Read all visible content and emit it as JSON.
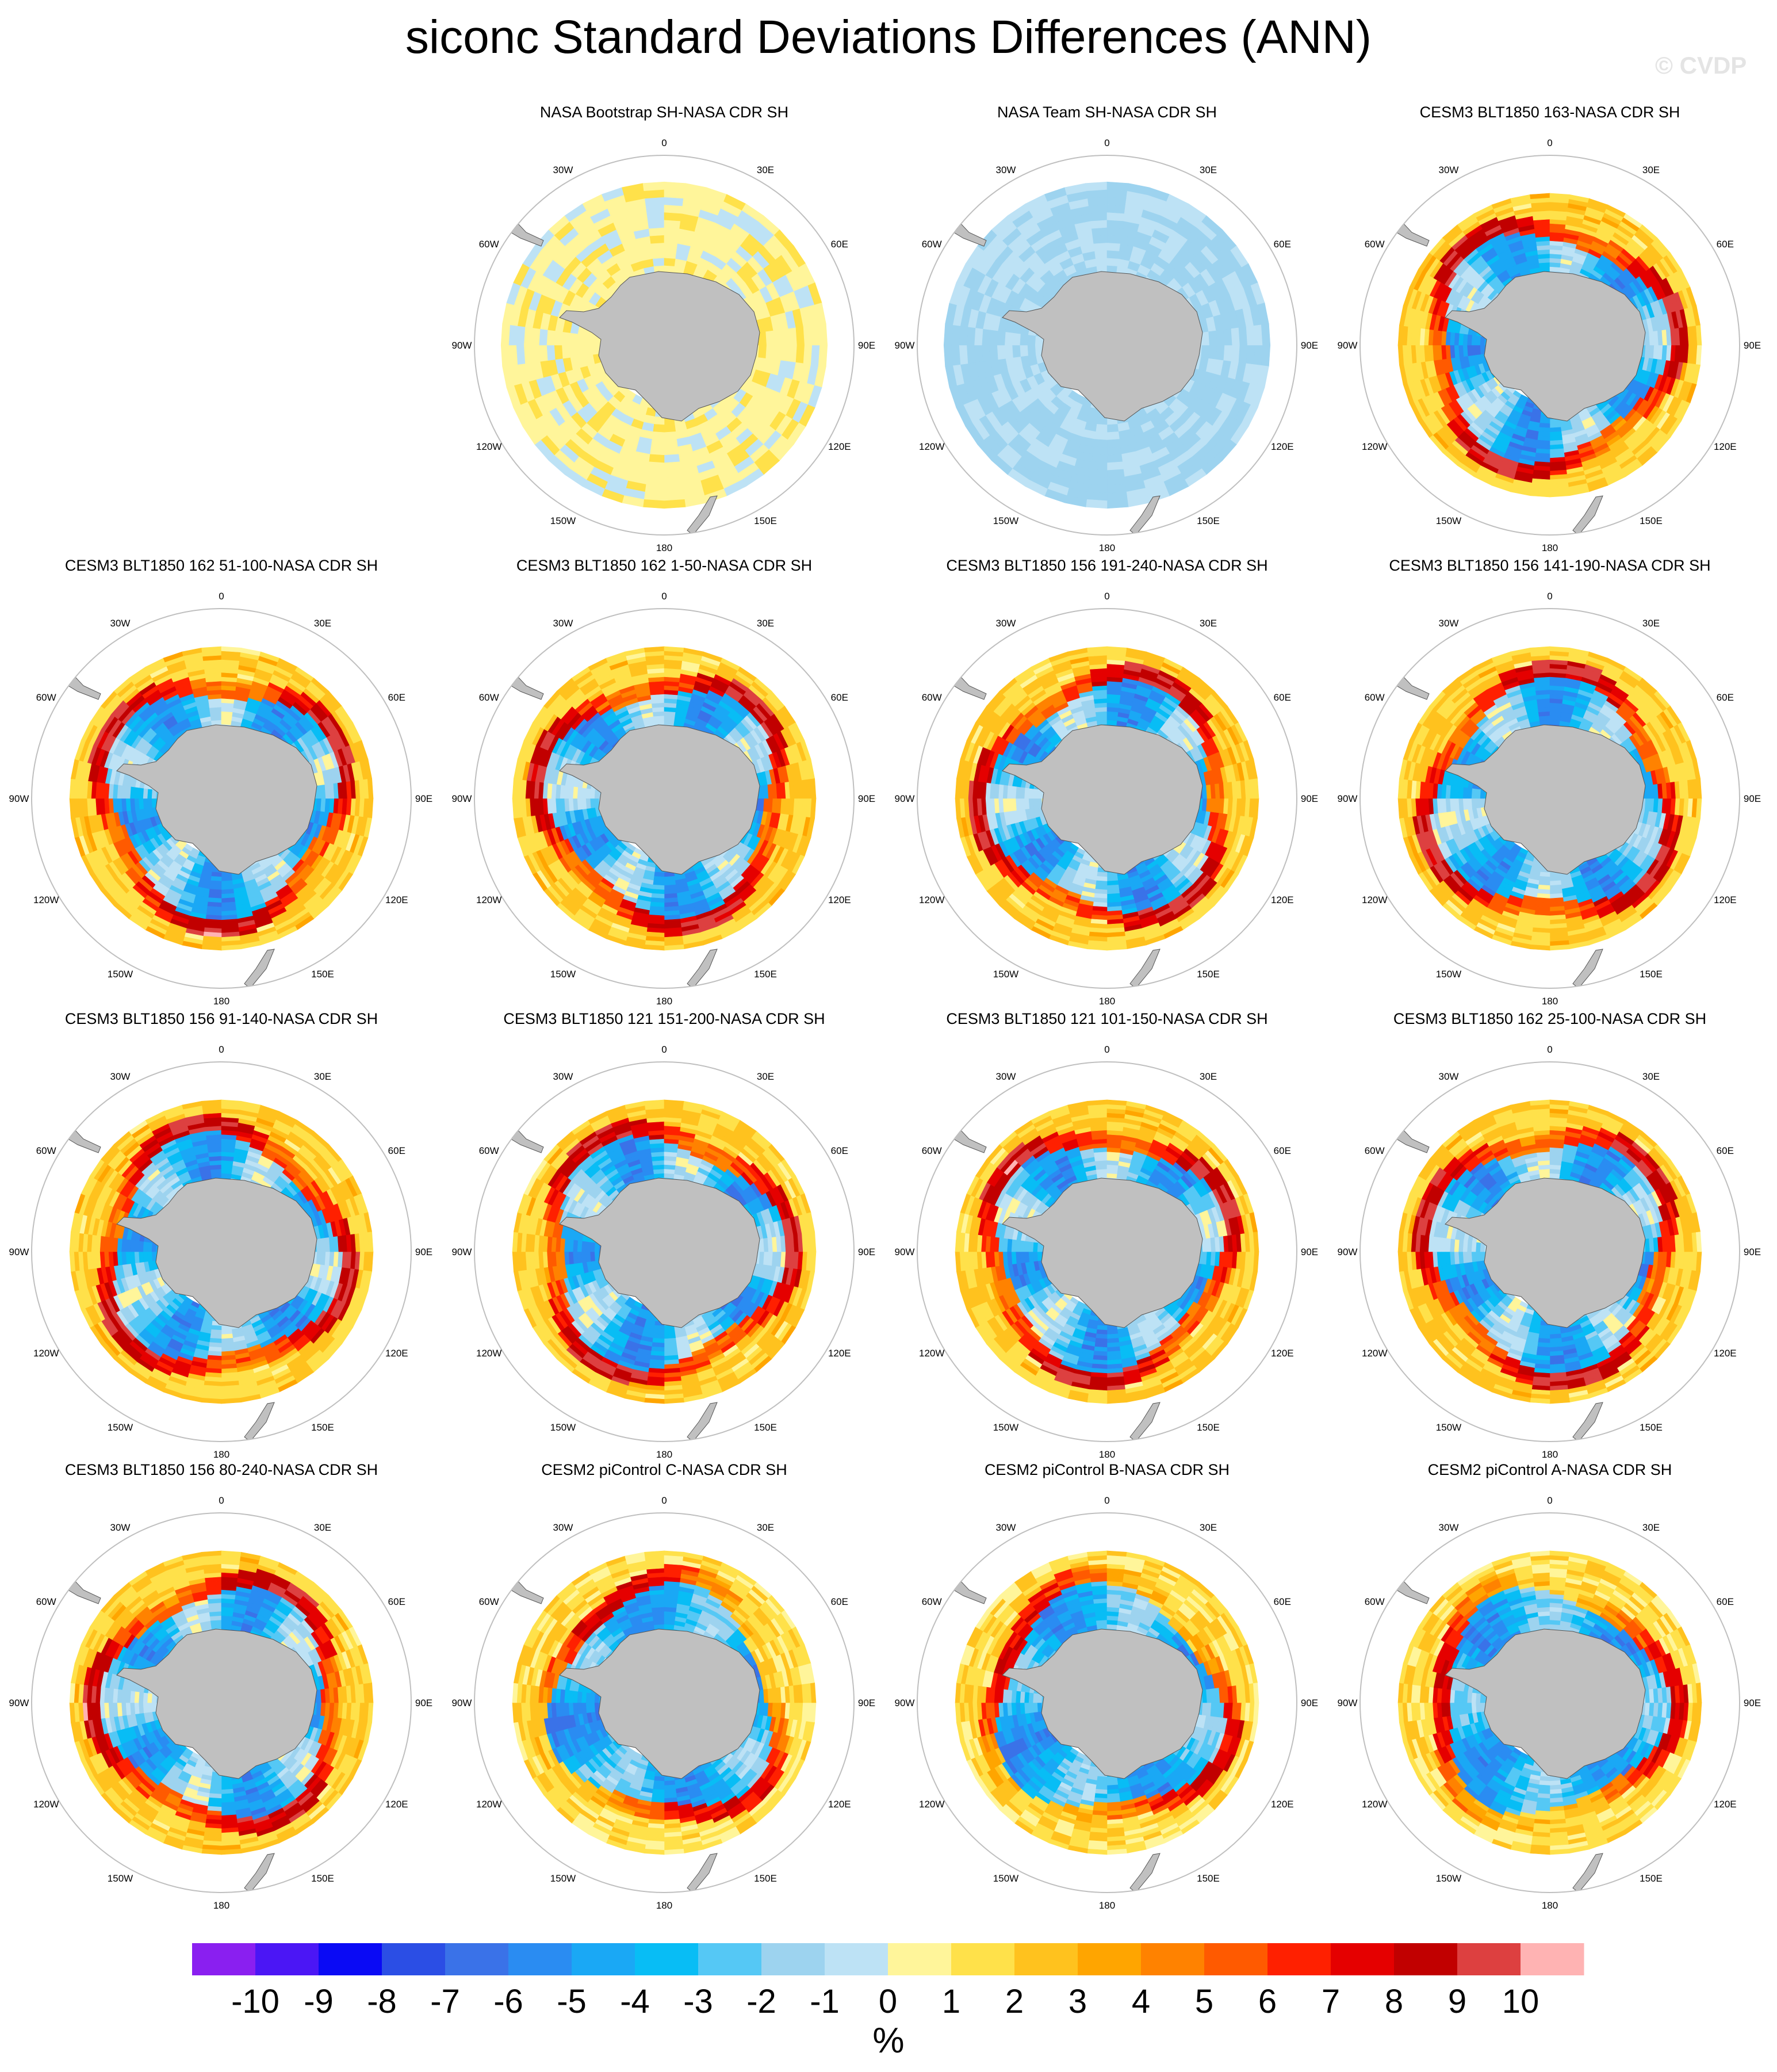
{
  "title": "siconc Standard Deviations Differences (ANN)",
  "watermark": "© CVDP",
  "lon_labels": [
    "0",
    "30E",
    "60E",
    "90E",
    "120E",
    "150E",
    "180",
    "150W",
    "120W",
    "90W",
    "60W",
    "30W"
  ],
  "chart_data": {
    "type": "heatmap",
    "projection": "South polar stereographic",
    "variable": "siconc",
    "season": "ANN",
    "units": "%",
    "panels": [
      {
        "title": "NASA Bootstrap SH-NASA CDR SH",
        "pattern": "weak"
      },
      {
        "title": "NASA Team SH-NASA CDR SH",
        "pattern": "weak-negative"
      },
      {
        "title": "CESM3 BLT1850 163-NASA CDR SH",
        "pattern": "model"
      },
      {
        "title": "CESM3 BLT1850 162 51-100-NASA CDR SH",
        "pattern": "model"
      },
      {
        "title": "CESM3 BLT1850 162 1-50-NASA CDR SH",
        "pattern": "model"
      },
      {
        "title": "CESM3 BLT1850 156 191-240-NASA CDR SH",
        "pattern": "model"
      },
      {
        "title": "CESM3 BLT1850 156 141-190-NASA CDR SH",
        "pattern": "model"
      },
      {
        "title": "CESM3 BLT1850 156 91-140-NASA CDR SH",
        "pattern": "model"
      },
      {
        "title": "CESM3 BLT1850 121 151-200-NASA CDR SH",
        "pattern": "model"
      },
      {
        "title": "CESM3 BLT1850 121 101-150-NASA CDR SH",
        "pattern": "model"
      },
      {
        "title": "CESM3 BLT1850 162 25-100-NASA CDR SH",
        "pattern": "model"
      },
      {
        "title": "CESM3 BLT1850 156 80-240-NASA CDR SH",
        "pattern": "model"
      },
      {
        "title": "CESM2 piControl C-NASA CDR SH",
        "pattern": "cesm2"
      },
      {
        "title": "CESM2 piControl B-NASA CDR SH",
        "pattern": "cesm2"
      },
      {
        "title": "CESM2 piControl A-NASA CDR SH",
        "pattern": "cesm2"
      }
    ],
    "colorbar": {
      "labels": [
        "-10",
        "-9",
        "-8",
        "-7",
        "-6",
        "-5",
        "-4",
        "-3",
        "-2",
        "-1",
        "0",
        "1",
        "2",
        "3",
        "4",
        "5",
        "6",
        "7",
        "8",
        "9",
        "10"
      ],
      "colors": [
        "#8a1ff0",
        "#4b16f5",
        "#0a0af5",
        "#2b4ee5",
        "#3a72e8",
        "#2a8cf2",
        "#1aa8f5",
        "#08bdf5",
        "#55c8f5",
        "#9dd3ef",
        "#bde2f5",
        "#fff59a",
        "#ffe14a",
        "#ffc21e",
        "#ffa500",
        "#ff8200",
        "#ff5a00",
        "#ff2000",
        "#e50000",
        "#c10000",
        "#dd4040",
        "#ffb3b3"
      ],
      "units_label": "%"
    },
    "colors": {
      "land": "#c0c0c0",
      "map_circle": "#bfbfbf",
      "background": "#ffffff"
    }
  }
}
